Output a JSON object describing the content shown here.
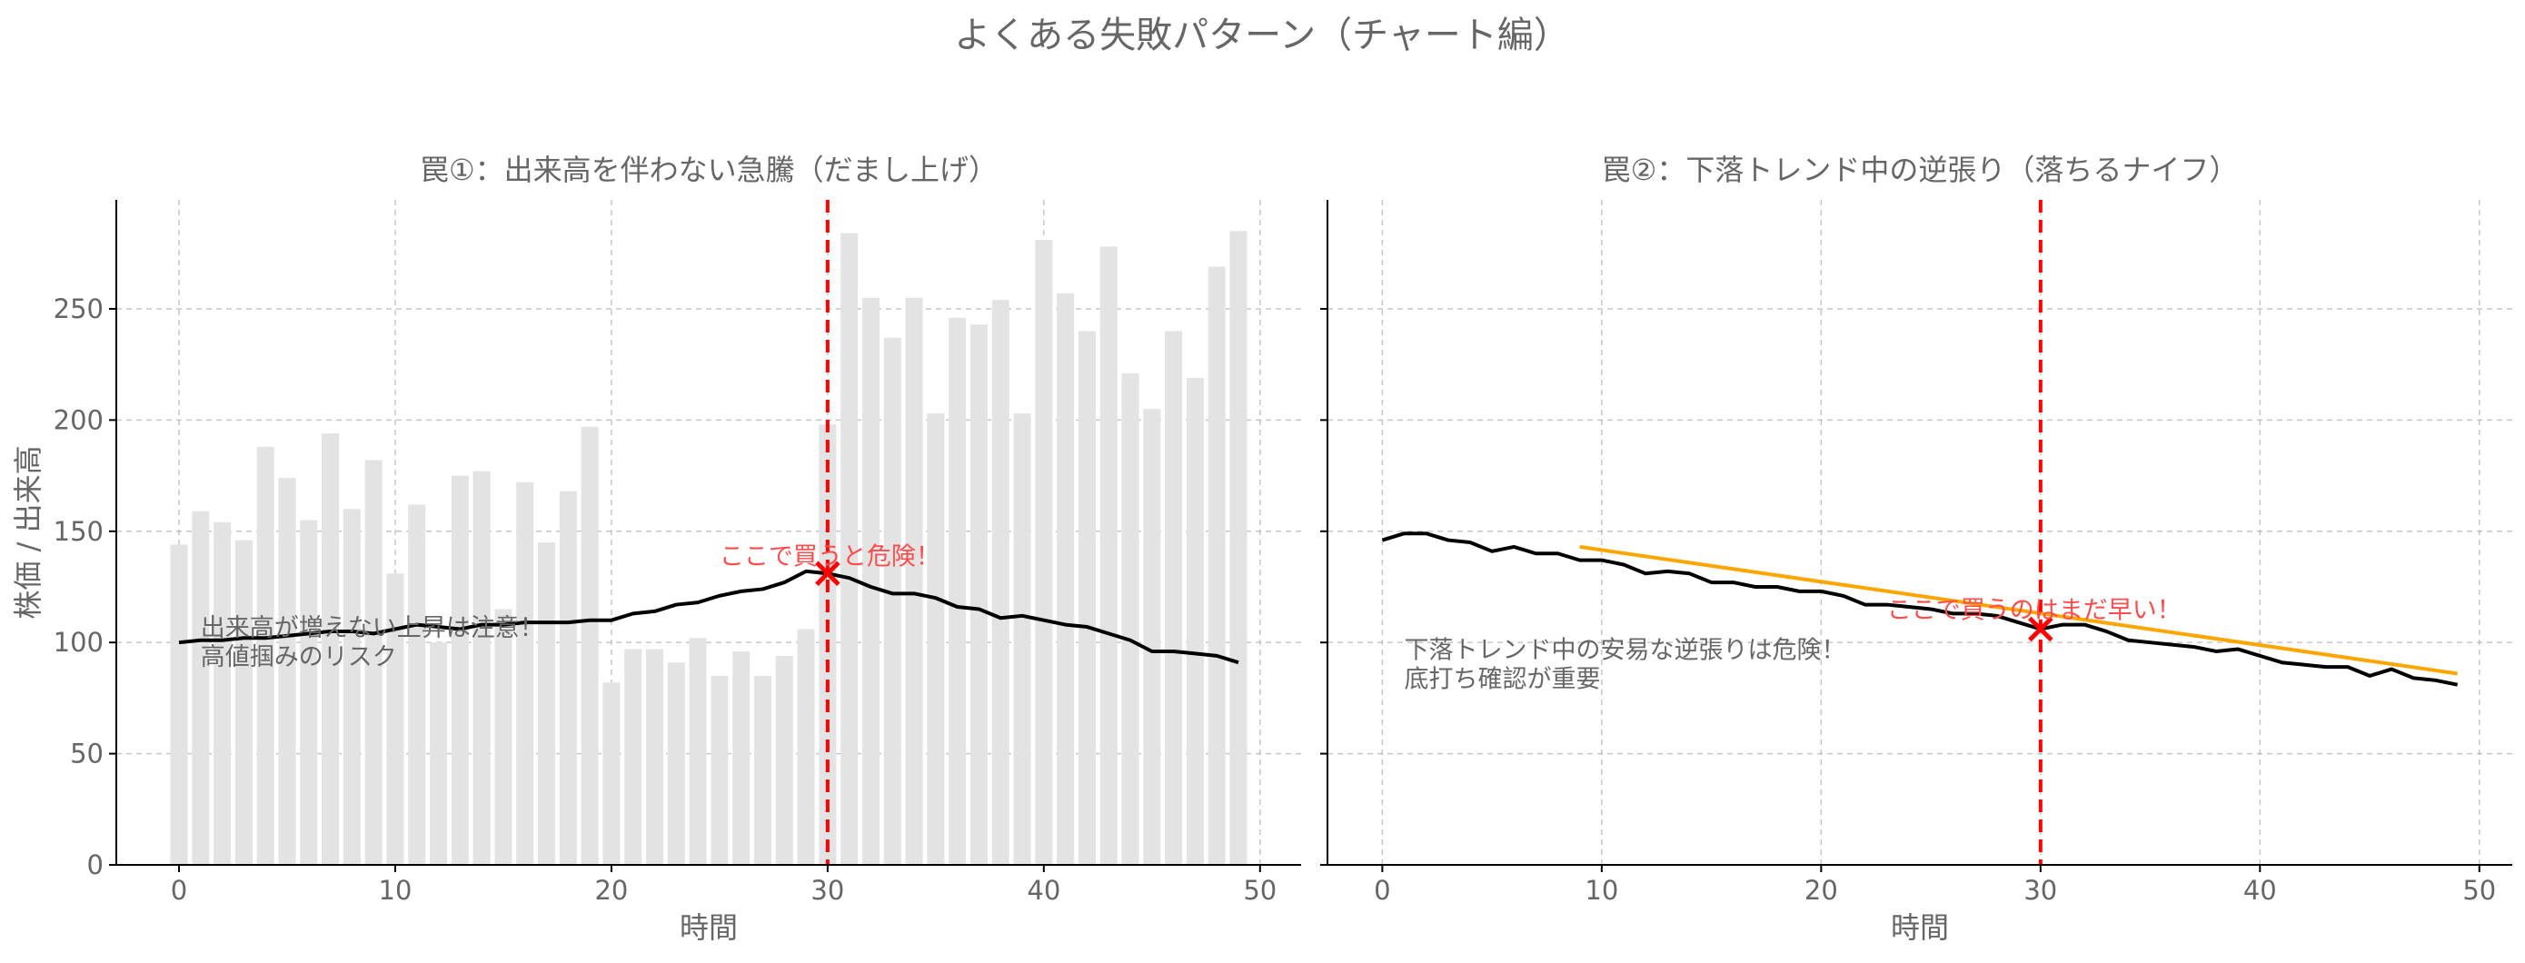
{
  "suptitle": "よくある失敗パターン（チャート編）",
  "colors": {
    "volume_bar": "#e3e3e3",
    "price_line": "#000000",
    "trend_line": "#ffa500",
    "danger": "#ff0000",
    "danger_text": "#ff4d4d",
    "grid": "#b0b0b0",
    "text": "#666666"
  },
  "chart_data": [
    {
      "type": "bar",
      "title": "罠①：出来高を伴わない急騰（だまし上げ）",
      "xlabel": "時間",
      "ylabel": "株価 / 出来高",
      "xlim": [
        -2.9,
        51.9
      ],
      "ylim": [
        0,
        299
      ],
      "xticks": [
        0,
        10,
        20,
        30,
        40,
        50
      ],
      "yticks": [
        0,
        50,
        100,
        150,
        200,
        250
      ],
      "grid": true,
      "x": [
        0,
        1,
        2,
        3,
        4,
        5,
        6,
        7,
        8,
        9,
        10,
        11,
        12,
        13,
        14,
        15,
        16,
        17,
        18,
        19,
        20,
        21,
        22,
        23,
        24,
        25,
        26,
        27,
        28,
        29,
        30,
        31,
        32,
        33,
        34,
        35,
        36,
        37,
        38,
        39,
        40,
        41,
        42,
        43,
        44,
        45,
        46,
        47,
        48,
        49
      ],
      "series": [
        {
          "type": "bar",
          "values": [
            144,
            159,
            154,
            146,
            188,
            174,
            155,
            194,
            160,
            182,
            131,
            162,
            100,
            175,
            177,
            115,
            172,
            145,
            168,
            197,
            82,
            97,
            97,
            91,
            102,
            85,
            96,
            85,
            94,
            106,
            198,
            284,
            255,
            237,
            255,
            203,
            246,
            243,
            254,
            203,
            281,
            257,
            240,
            278,
            221,
            205,
            240,
            219,
            269,
            285
          ]
        },
        {
          "type": "line",
          "values": [
            100,
            101,
            101,
            102,
            102,
            103,
            104,
            105,
            105,
            104,
            106,
            108,
            107,
            106,
            108,
            108,
            109,
            109,
            109,
            110,
            110,
            113,
            114,
            117,
            118,
            121,
            123,
            124,
            127,
            132,
            131,
            129,
            125,
            122,
            122,
            120,
            116,
            115,
            111,
            112,
            110,
            108,
            107,
            104,
            101,
            96,
            96,
            95,
            94,
            91
          ]
        }
      ],
      "vline_x": 30,
      "marker": {
        "x": 30,
        "y": 131
      },
      "annotations": [
        {
          "text": "ここで買うと危険！",
          "x": 25,
          "y": 135,
          "style": "danger"
        },
        {
          "lines": [
            "出来高が増えない上昇は注意！",
            "高値掴みのリスク"
          ],
          "x": 1,
          "y": 103,
          "style": "note"
        }
      ]
    },
    {
      "type": "line",
      "title": "罠②：下落トレンド中の逆張り（落ちるナイフ）",
      "xlabel": "時間",
      "xlim": [
        -2.5,
        51.5
      ],
      "ylim": [
        0,
        299
      ],
      "xticks": [
        0,
        10,
        20,
        30,
        40,
        50
      ],
      "yticks": [
        0,
        50,
        100,
        150,
        200,
        250
      ],
      "grid": true,
      "x": [
        0,
        1,
        2,
        3,
        4,
        5,
        6,
        7,
        8,
        9,
        10,
        11,
        12,
        13,
        14,
        15,
        16,
        17,
        18,
        19,
        20,
        21,
        22,
        23,
        24,
        25,
        26,
        27,
        28,
        29,
        30,
        31,
        32,
        33,
        34,
        35,
        36,
        37,
        38,
        39,
        40,
        41,
        42,
        43,
        44,
        45,
        46,
        47,
        48,
        49
      ],
      "series": [
        {
          "type": "line",
          "values": [
            146,
            149,
            149,
            146,
            145,
            141,
            143,
            140,
            140,
            137,
            137,
            135,
            131,
            132,
            131,
            127,
            127,
            125,
            125,
            123,
            123,
            121,
            117,
            117,
            116,
            115,
            113,
            113,
            112,
            109,
            106,
            108,
            108,
            105,
            101,
            100,
            99,
            98,
            96,
            97,
            94,
            91,
            90,
            89,
            89,
            85,
            88,
            84,
            83,
            81
          ]
        },
        {
          "type": "line",
          "x_range": [
            9,
            49
          ],
          "y_range": [
            143,
            86
          ]
        }
      ],
      "vline_x": 30,
      "marker": {
        "x": 30,
        "y": 106
      },
      "annotations": [
        {
          "text": "ここで買うのはまだ早い！",
          "x": 23,
          "y": 111,
          "style": "danger"
        },
        {
          "lines": [
            "下落トレンド中の安易な逆張りは危険！",
            "底打ち確認が重要"
          ],
          "x": 1,
          "y": 93,
          "style": "note"
        }
      ]
    }
  ]
}
